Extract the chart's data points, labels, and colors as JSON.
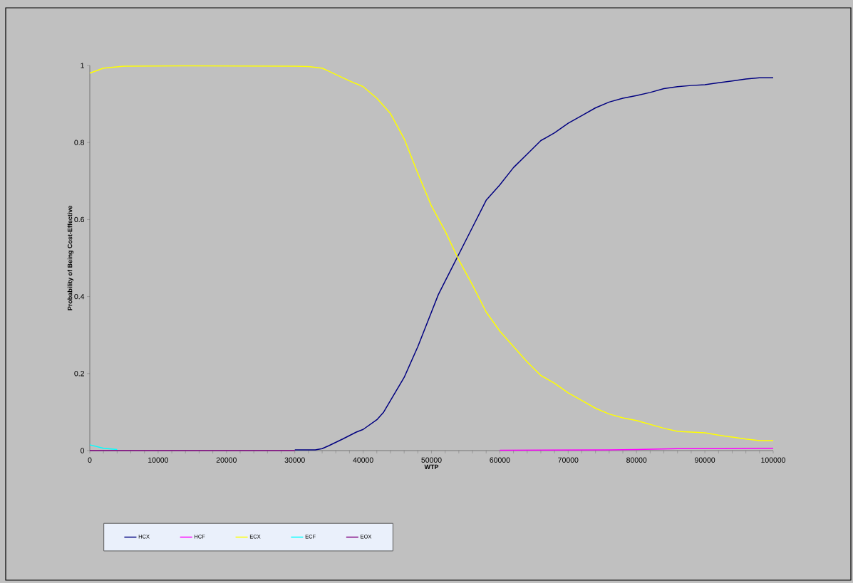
{
  "chart_data": {
    "type": "line",
    "xlabel": "WTP",
    "ylabel": "Probability of Being Cost-Effective",
    "xlim": [
      0,
      100000
    ],
    "ylim": [
      0,
      1
    ],
    "xticks": [
      0,
      10000,
      20000,
      30000,
      40000,
      50000,
      60000,
      70000,
      80000,
      90000,
      100000
    ],
    "yticks": [
      0,
      0.2,
      0.4,
      0.6,
      0.8,
      1
    ],
    "legend": "bottom left",
    "marker": "none",
    "line_style": "solid",
    "series": [
      {
        "name": "HCX",
        "color": "#000080",
        "x": [
          30000,
          33000,
          34000,
          35000,
          37000,
          39000,
          40000,
          42000,
          43000,
          44000,
          46000,
          48000,
          50000,
          51000,
          52000,
          54000,
          56000,
          58000,
          60000,
          62000,
          64000,
          66000,
          68000,
          70000,
          72000,
          74000,
          76000,
          78000,
          80000,
          82000,
          84000,
          86000,
          88000,
          90000,
          92000,
          94000,
          96000,
          98000,
          100000
        ],
        "values": [
          0.002,
          0.002,
          0.005,
          0.013,
          0.03,
          0.048,
          0.055,
          0.08,
          0.1,
          0.13,
          0.19,
          0.27,
          0.36,
          0.405,
          0.44,
          0.51,
          0.58,
          0.65,
          0.69,
          0.735,
          0.77,
          0.805,
          0.825,
          0.85,
          0.87,
          0.89,
          0.905,
          0.915,
          0.922,
          0.93,
          0.94,
          0.945,
          0.948,
          0.95,
          0.955,
          0.96,
          0.965,
          0.968,
          0.968
        ]
      },
      {
        "name": "HCF",
        "color": "#ff00ff",
        "x": [
          60000,
          76000,
          80000,
          86000,
          92000,
          98000,
          100000
        ],
        "values": [
          0.001,
          0.002,
          0.003,
          0.005,
          0.005,
          0.006,
          0.006
        ]
      },
      {
        "name": "ECX",
        "color": "#ffff00",
        "x": [
          0,
          2000,
          5000,
          15000,
          30000,
          32000,
          34000,
          35000,
          38000,
          40000,
          42000,
          44000,
          46000,
          48000,
          50000,
          52000,
          54000,
          56000,
          58000,
          60000,
          62000,
          64000,
          66000,
          68000,
          70000,
          72000,
          74000,
          76000,
          78000,
          80000,
          82000,
          84000,
          86000,
          88000,
          90000,
          92000,
          94000,
          96000,
          98000,
          100000
        ],
        "values": [
          0.98,
          0.993,
          0.998,
          0.999,
          0.998,
          0.997,
          0.993,
          0.985,
          0.96,
          0.945,
          0.915,
          0.875,
          0.81,
          0.72,
          0.635,
          0.57,
          0.495,
          0.43,
          0.36,
          0.31,
          0.27,
          0.23,
          0.195,
          0.175,
          0.15,
          0.13,
          0.11,
          0.095,
          0.085,
          0.078,
          0.068,
          0.058,
          0.05,
          0.048,
          0.046,
          0.04,
          0.035,
          0.03,
          0.026,
          0.026
        ]
      },
      {
        "name": "ECF",
        "color": "#00ffff",
        "x": [
          0,
          2000,
          4000
        ],
        "values": [
          0.015,
          0.006,
          0.003
        ]
      },
      {
        "name": "EOX",
        "color": "#800080",
        "x": [
          0,
          15000,
          30000
        ],
        "values": [
          0,
          0,
          0
        ]
      }
    ]
  }
}
